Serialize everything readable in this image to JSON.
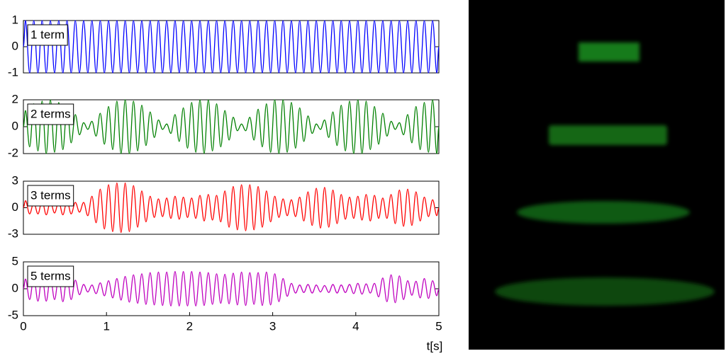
{
  "chart_data": [
    {
      "type": "line",
      "label": "1 term",
      "color": "#0000ff",
      "xlim": [
        0,
        5
      ],
      "ylim": [
        -1,
        1
      ],
      "yticks": [
        -1,
        0,
        1
      ],
      "x": [
        0,
        0.025,
        0.075,
        0.125,
        0.175,
        0.225,
        0.275,
        0.325,
        0.375,
        0.425,
        0.475,
        0.525,
        0.575,
        0.625,
        0.675,
        0.725,
        0.775,
        0.825,
        0.875,
        0.925,
        0.975,
        1.025,
        1.075,
        1.125,
        1.175,
        1.225,
        1.275,
        1.325,
        1.375,
        1.425,
        1.475,
        1.525,
        1.575,
        1.625,
        1.675,
        1.725,
        1.775,
        1.825,
        1.875,
        1.925,
        1.975,
        2.025,
        2.075,
        2.125,
        2.175,
        2.225,
        2.275,
        2.325,
        2.375,
        2.425,
        2.475,
        2.525,
        2.575,
        2.625,
        2.675,
        2.725,
        2.775,
        2.825,
        2.875,
        2.925,
        2.975,
        3.025,
        3.075,
        3.125,
        3.175,
        3.225,
        3.275,
        3.325,
        3.375,
        3.425,
        3.475,
        3.525,
        3.575,
        3.625,
        3.675,
        3.725,
        3.775,
        3.825,
        3.875,
        3.925,
        3.975,
        4.025,
        4.075,
        4.125,
        4.175,
        4.225,
        4.275,
        4.325,
        4.375,
        4.425,
        4.475,
        4.525,
        4.575,
        4.625,
        4.675,
        4.725,
        4.775,
        4.825,
        4.875,
        4.925,
        4.975,
        5
      ],
      "values": [
        0,
        1,
        -1,
        1,
        -1,
        1,
        -1,
        1,
        -1,
        1,
        -1,
        1,
        -1,
        1,
        -1,
        1,
        -1,
        1,
        -1,
        1,
        -1,
        1,
        -1,
        1,
        -1,
        1,
        -1,
        1,
        -1,
        1,
        -1,
        1,
        -1,
        1,
        -1,
        1,
        -1,
        1,
        -1,
        1,
        -1,
        1,
        -1,
        1,
        -1,
        1,
        -1,
        1,
        -1,
        1,
        -1,
        1,
        -1,
        1,
        -1,
        1,
        -1,
        1,
        -1,
        1,
        -1,
        1,
        -1,
        1,
        -1,
        1,
        -1,
        1,
        -1,
        1,
        -1,
        1,
        -1,
        1,
        -1,
        1,
        -1,
        1,
        -1,
        1,
        -1,
        1,
        -1,
        1,
        -1,
        1,
        -1,
        1,
        -1,
        1,
        -1,
        1,
        -1,
        1,
        -1,
        1,
        -1,
        1,
        -1,
        1,
        -1,
        0
      ]
    },
    {
      "type": "line",
      "label": "2 terms",
      "color": "#008000",
      "xlim": [
        0,
        5
      ],
      "ylim": [
        -2,
        2
      ],
      "yticks": [
        -2,
        0,
        2
      ],
      "x": [
        0,
        0.025,
        0.075,
        0.125,
        0.175,
        0.225,
        0.275,
        0.325,
        0.375,
        0.425,
        0.475,
        0.525,
        0.575,
        0.625,
        0.675,
        0.725,
        0.775,
        0.825,
        0.875,
        0.925,
        0.975,
        1.025,
        1.075,
        1.125,
        1.175,
        1.225,
        1.275,
        1.325,
        1.375,
        1.425,
        1.475,
        1.525,
        1.575,
        1.625,
        1.675,
        1.725,
        1.775,
        1.825,
        1.875,
        1.925,
        1.975,
        2.025,
        2.075,
        2.125,
        2.175,
        2.225,
        2.275,
        2.325,
        2.375,
        2.425,
        2.475,
        2.525,
        2.575,
        2.625,
        2.675,
        2.725,
        2.775,
        2.825,
        2.875,
        2.925,
        2.975,
        3.025,
        3.075,
        3.125,
        3.175,
        3.225,
        3.275,
        3.325,
        3.375,
        3.425,
        3.475,
        3.525,
        3.575,
        3.625,
        3.675,
        3.725,
        3.775,
        3.825,
        3.875,
        3.925,
        3.975,
        4.025,
        4.075,
        4.125,
        4.175,
        4.225,
        4.275,
        4.325,
        4.375,
        4.425,
        4.475,
        4.525,
        4.575,
        4.625,
        4.675,
        4.725,
        4.775,
        4.825,
        4.875,
        4.925,
        4.975,
        5
      ],
      "values": [
        0,
        1.2,
        -1.5,
        1.7,
        -1.8,
        1.9,
        -2.0,
        2.0,
        -1.9,
        1.8,
        -1.7,
        1.5,
        -1.2,
        0.9,
        -0.6,
        0.3,
        -0.2,
        0.4,
        -0.7,
        1.0,
        -1.3,
        1.5,
        -1.7,
        1.9,
        -2.0,
        2.0,
        -2.0,
        1.9,
        -1.8,
        1.6,
        -1.4,
        1.1,
        -0.8,
        0.5,
        -0.2,
        0.2,
        -0.5,
        0.9,
        -1.1,
        1.4,
        -1.6,
        1.8,
        -1.9,
        2.0,
        -2.0,
        2.0,
        -1.8,
        1.7,
        -1.5,
        1.2,
        -1.0,
        0.7,
        -0.3,
        0.2,
        -0.3,
        0.7,
        -1.0,
        1.3,
        -1.5,
        1.7,
        -1.9,
        2.0,
        -2.0,
        2.0,
        -1.9,
        1.8,
        -1.6,
        1.4,
        -1.1,
        0.8,
        -0.5,
        0.2,
        -0.2,
        0.5,
        -0.8,
        1.1,
        -1.4,
        1.6,
        -1.8,
        1.9,
        -2.0,
        2.0,
        -2.0,
        1.9,
        -1.7,
        1.5,
        -1.3,
        1.0,
        -0.7,
        0.4,
        -0.2,
        0.3,
        -0.6,
        0.9,
        -1.2,
        1.5,
        -1.7,
        1.8,
        -1.9,
        2.0,
        -2.0,
        0
      ]
    },
    {
      "type": "line",
      "label": "3 terms",
      "color": "#ff0000",
      "xlim": [
        0,
        5
      ],
      "ylim": [
        -3,
        3
      ],
      "yticks": [
        -3,
        0,
        3
      ],
      "x": [
        0,
        0.025,
        0.075,
        0.125,
        0.175,
        0.225,
        0.275,
        0.325,
        0.375,
        0.425,
        0.475,
        0.525,
        0.575,
        0.625,
        0.675,
        0.725,
        0.775,
        0.825,
        0.875,
        0.925,
        0.975,
        1.025,
        1.075,
        1.125,
        1.175,
        1.225,
        1.275,
        1.325,
        1.375,
        1.425,
        1.475,
        1.525,
        1.575,
        1.625,
        1.675,
        1.725,
        1.775,
        1.825,
        1.875,
        1.925,
        1.975,
        2.025,
        2.075,
        2.125,
        2.175,
        2.225,
        2.275,
        2.325,
        2.375,
        2.425,
        2.475,
        2.525,
        2.575,
        2.625,
        2.675,
        2.725,
        2.775,
        2.825,
        2.875,
        2.925,
        2.975,
        3.025,
        3.075,
        3.125,
        3.175,
        3.225,
        3.275,
        3.325,
        3.375,
        3.425,
        3.475,
        3.525,
        3.575,
        3.625,
        3.675,
        3.725,
        3.775,
        3.825,
        3.875,
        3.925,
        3.975,
        4.025,
        4.075,
        4.125,
        4.175,
        4.225,
        4.275,
        4.325,
        4.375,
        4.425,
        4.475,
        4.525,
        4.575,
        4.625,
        4.675,
        4.725,
        4.775,
        4.825,
        4.875,
        4.925,
        4.975,
        5
      ],
      "values": [
        0,
        0.8,
        -0.7,
        0.6,
        -0.7,
        0.8,
        -0.8,
        0.7,
        -0.6,
        0.7,
        -0.8,
        0.8,
        -0.7,
        0.6,
        -0.5,
        0.6,
        -0.9,
        1.3,
        -1.7,
        2.1,
        -2.4,
        2.6,
        -2.7,
        2.8,
        -2.8,
        2.8,
        -2.7,
        2.5,
        -2.2,
        1.9,
        -1.6,
        1.3,
        -1.1,
        1.0,
        -1.0,
        1.1,
        -1.2,
        1.3,
        -1.3,
        1.2,
        -1.1,
        1.1,
        -1.2,
        1.4,
        -1.5,
        1.5,
        -1.4,
        1.4,
        -1.6,
        1.9,
        -2.2,
        2.4,
        -2.5,
        2.6,
        -2.6,
        2.6,
        -2.5,
        2.4,
        -2.2,
        1.9,
        -1.6,
        1.3,
        -1.1,
        1.0,
        -0.9,
        0.9,
        -1.0,
        1.2,
        -1.5,
        1.8,
        -2.0,
        2.2,
        -2.3,
        2.3,
        -2.2,
        2.0,
        -1.8,
        1.5,
        -1.3,
        1.2,
        -1.2,
        1.3,
        -1.4,
        1.5,
        -1.5,
        1.4,
        -1.2,
        1.1,
        -1.2,
        1.5,
        -1.8,
        2.0,
        -2.1,
        2.1,
        -2.0,
        1.8,
        -1.5,
        1.2,
        -1.0,
        0.9,
        -0.9,
        0
      ]
    },
    {
      "type": "line",
      "label": "5 terms",
      "color": "#bf00bf",
      "xlim": [
        0,
        5
      ],
      "ylim": [
        -5,
        5
      ],
      "yticks": [
        -5,
        0,
        5
      ],
      "xticks": [
        0,
        1,
        2,
        3,
        4,
        5
      ],
      "xlabel": "t[s]",
      "x": [
        0,
        0.025,
        0.075,
        0.125,
        0.175,
        0.225,
        0.275,
        0.325,
        0.375,
        0.425,
        0.475,
        0.525,
        0.575,
        0.625,
        0.675,
        0.725,
        0.775,
        0.825,
        0.875,
        0.925,
        0.975,
        1.025,
        1.075,
        1.125,
        1.175,
        1.225,
        1.275,
        1.325,
        1.375,
        1.425,
        1.475,
        1.525,
        1.575,
        1.625,
        1.675,
        1.725,
        1.775,
        1.825,
        1.875,
        1.925,
        1.975,
        2.025,
        2.075,
        2.125,
        2.175,
        2.225,
        2.275,
        2.325,
        2.375,
        2.425,
        2.475,
        2.525,
        2.575,
        2.625,
        2.675,
        2.725,
        2.775,
        2.825,
        2.875,
        2.925,
        2.975,
        3.025,
        3.075,
        3.125,
        3.175,
        3.225,
        3.275,
        3.325,
        3.375,
        3.425,
        3.475,
        3.525,
        3.575,
        3.625,
        3.675,
        3.725,
        3.775,
        3.825,
        3.875,
        3.925,
        3.975,
        4.025,
        4.075,
        4.125,
        4.175,
        4.225,
        4.275,
        4.325,
        4.375,
        4.425,
        4.475,
        4.525,
        4.575,
        4.625,
        4.675,
        4.725,
        4.775,
        4.825,
        4.875,
        4.925,
        4.975,
        5
      ],
      "values": [
        0,
        1.8,
        -2.0,
        2.2,
        -2.3,
        2.4,
        -2.3,
        2.2,
        -2.0,
        2.2,
        -2.4,
        2.3,
        -2.0,
        1.6,
        -1.1,
        0.8,
        -0.6,
        0.7,
        -0.9,
        1.1,
        -1.3,
        1.5,
        -1.7,
        1.9,
        -2.1,
        2.3,
        -2.5,
        2.6,
        -2.7,
        2.8,
        -2.9,
        3.0,
        -3.0,
        3.1,
        -3.1,
        3.1,
        -3.2,
        3.2,
        -3.2,
        3.2,
        -3.2,
        3.2,
        -3.2,
        3.1,
        -3.1,
        3.0,
        -2.9,
        2.8,
        -2.7,
        2.7,
        -2.8,
        2.9,
        -3.0,
        3.1,
        -3.1,
        3.0,
        -2.9,
        3.0,
        -3.1,
        3.1,
        -3.0,
        2.8,
        -2.4,
        1.9,
        -1.4,
        1.0,
        -0.8,
        0.7,
        -0.7,
        0.8,
        -0.8,
        0.7,
        -0.6,
        0.6,
        -0.7,
        0.8,
        -0.8,
        0.7,
        -0.7,
        0.8,
        -0.9,
        1.0,
        -1.0,
        0.9,
        -0.8,
        1.0,
        -1.5,
        2.0,
        -2.4,
        2.6,
        -2.6,
        2.4,
        -2.0,
        1.5,
        -1.2,
        1.4,
        -1.7,
        1.9,
        -1.8,
        1.5,
        -1.3,
        0
      ]
    }
  ]
}
